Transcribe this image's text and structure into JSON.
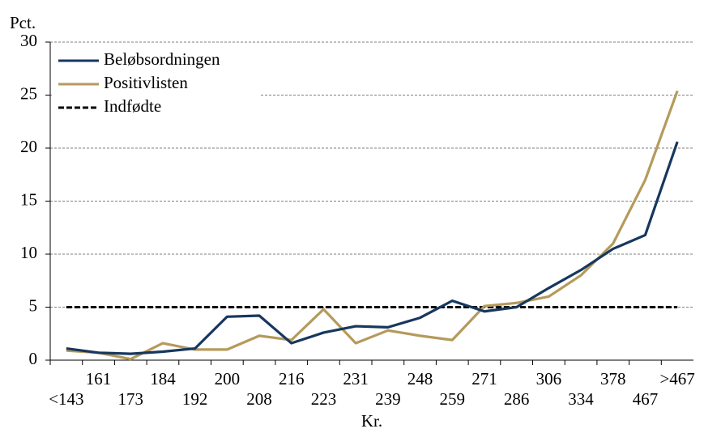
{
  "chart_data": {
    "type": "line",
    "ylabel": "Pct.",
    "xlabel": "Kr.",
    "categories": [
      "<143",
      "161",
      "173",
      "184",
      "192",
      "200",
      "208",
      "216",
      "223",
      "231",
      "239",
      "248",
      "259",
      "271",
      "286",
      "306",
      "334",
      "378",
      "467",
      ">467"
    ],
    "series": [
      {
        "name": "Beløbsordningen",
        "color": "#17375e",
        "dash": false,
        "values": [
          1.1,
          0.7,
          0.6,
          0.8,
          1.1,
          4.1,
          4.2,
          1.6,
          2.6,
          3.2,
          3.1,
          4.0,
          5.6,
          4.6,
          5.0,
          6.8,
          8.5,
          10.5,
          11.8,
          20.6
        ]
      },
      {
        "name": "Positivlisten",
        "color": "#b59a5b",
        "dash": false,
        "values": [
          0.9,
          0.7,
          0.1,
          1.6,
          1.0,
          1.0,
          2.3,
          1.9,
          4.8,
          1.6,
          2.8,
          2.3,
          1.9,
          5.1,
          5.4,
          6.0,
          8.0,
          11.0,
          17.0,
          25.4
        ]
      },
      {
        "name": "Indfødte",
        "color": "#000000",
        "dash": true,
        "values": [
          5,
          5,
          5,
          5,
          5,
          5,
          5,
          5,
          5,
          5,
          5,
          5,
          5,
          5,
          5,
          5,
          5,
          5,
          5,
          5
        ]
      }
    ],
    "ylim": [
      0,
      30
    ],
    "yticks": [
      0,
      5,
      10,
      15,
      20,
      25,
      30
    ],
    "grid": true,
    "legend": "top-left"
  }
}
